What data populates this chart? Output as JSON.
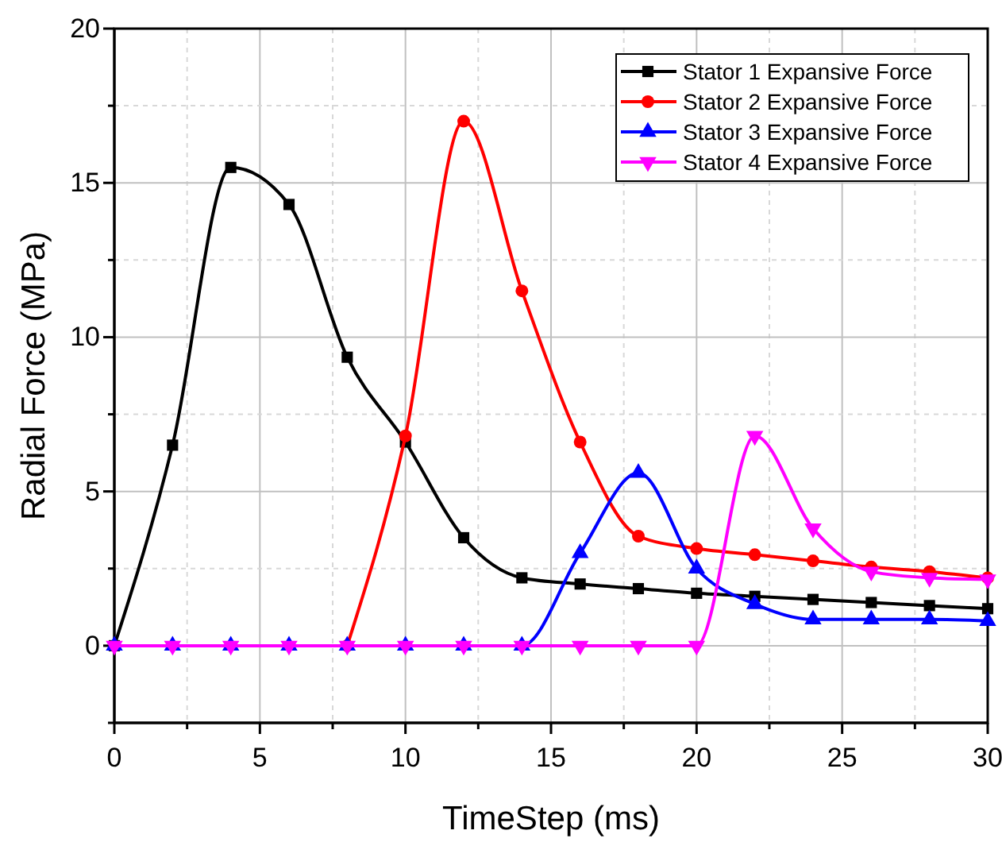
{
  "chart_data": {
    "type": "line",
    "xlabel": "TimeStep (ms)",
    "ylabel": "Radial Force (MPa)",
    "xlim": [
      0,
      30
    ],
    "ylim": [
      -2.5,
      20
    ],
    "xticks": [
      0,
      {
        "value": 2.5,
        "label": null
      },
      5,
      {
        "value": 7.5,
        "label": null
      },
      10,
      {
        "value": 12.5,
        "label": null
      },
      15,
      {
        "value": 17.5,
        "label": null
      },
      20,
      {
        "value": 22.5,
        "label": null
      },
      25,
      {
        "value": 27.5,
        "label": null
      },
      30
    ],
    "yticks": [
      {
        "value": -2.5,
        "label": null
      },
      0,
      {
        "value": 2.5,
        "label": null
      },
      5,
      {
        "value": 7.5,
        "label": null
      },
      10,
      {
        "value": 12.5,
        "label": null
      },
      15,
      {
        "value": 17.5,
        "label": null
      },
      20
    ],
    "grid": true,
    "legend": "top right",
    "line_style": "solid",
    "x": [
      0,
      2,
      4,
      6,
      8,
      10,
      12,
      14,
      16,
      18,
      20,
      22,
      24,
      26,
      28,
      30
    ],
    "series": [
      {
        "name": "Stator 1 Expansive Force",
        "color": "#000000",
        "marker": "square",
        "values": [
          0,
          6.5,
          15.5,
          14.3,
          9.35,
          6.6,
          3.5,
          2.2,
          2.0,
          1.85,
          1.7,
          1.6,
          1.5,
          1.4,
          1.3,
          1.2
        ]
      },
      {
        "name": "Stator 2 Expansive Force",
        "color": "#ff0000",
        "marker": "circle",
        "values": [
          null,
          null,
          null,
          null,
          0,
          6.8,
          17.0,
          11.5,
          6.6,
          3.55,
          3.15,
          2.95,
          2.75,
          2.55,
          2.4,
          2.2
        ]
      },
      {
        "name": "Stator 3 Expansive Force",
        "color": "#0000ff",
        "marker": "triangle",
        "values": [
          0,
          0,
          0,
          0,
          0,
          0,
          0,
          0,
          3.0,
          5.6,
          2.5,
          1.35,
          0.85,
          0.85,
          0.85,
          0.8
        ]
      },
      {
        "name": "Stator 4 Expansive Force",
        "color": "#ff00ff",
        "marker": "triangle-down",
        "values": [
          0,
          0,
          0,
          0,
          0,
          0,
          0,
          0,
          0,
          0,
          0,
          6.8,
          3.8,
          2.4,
          2.2,
          2.15
        ]
      }
    ]
  }
}
